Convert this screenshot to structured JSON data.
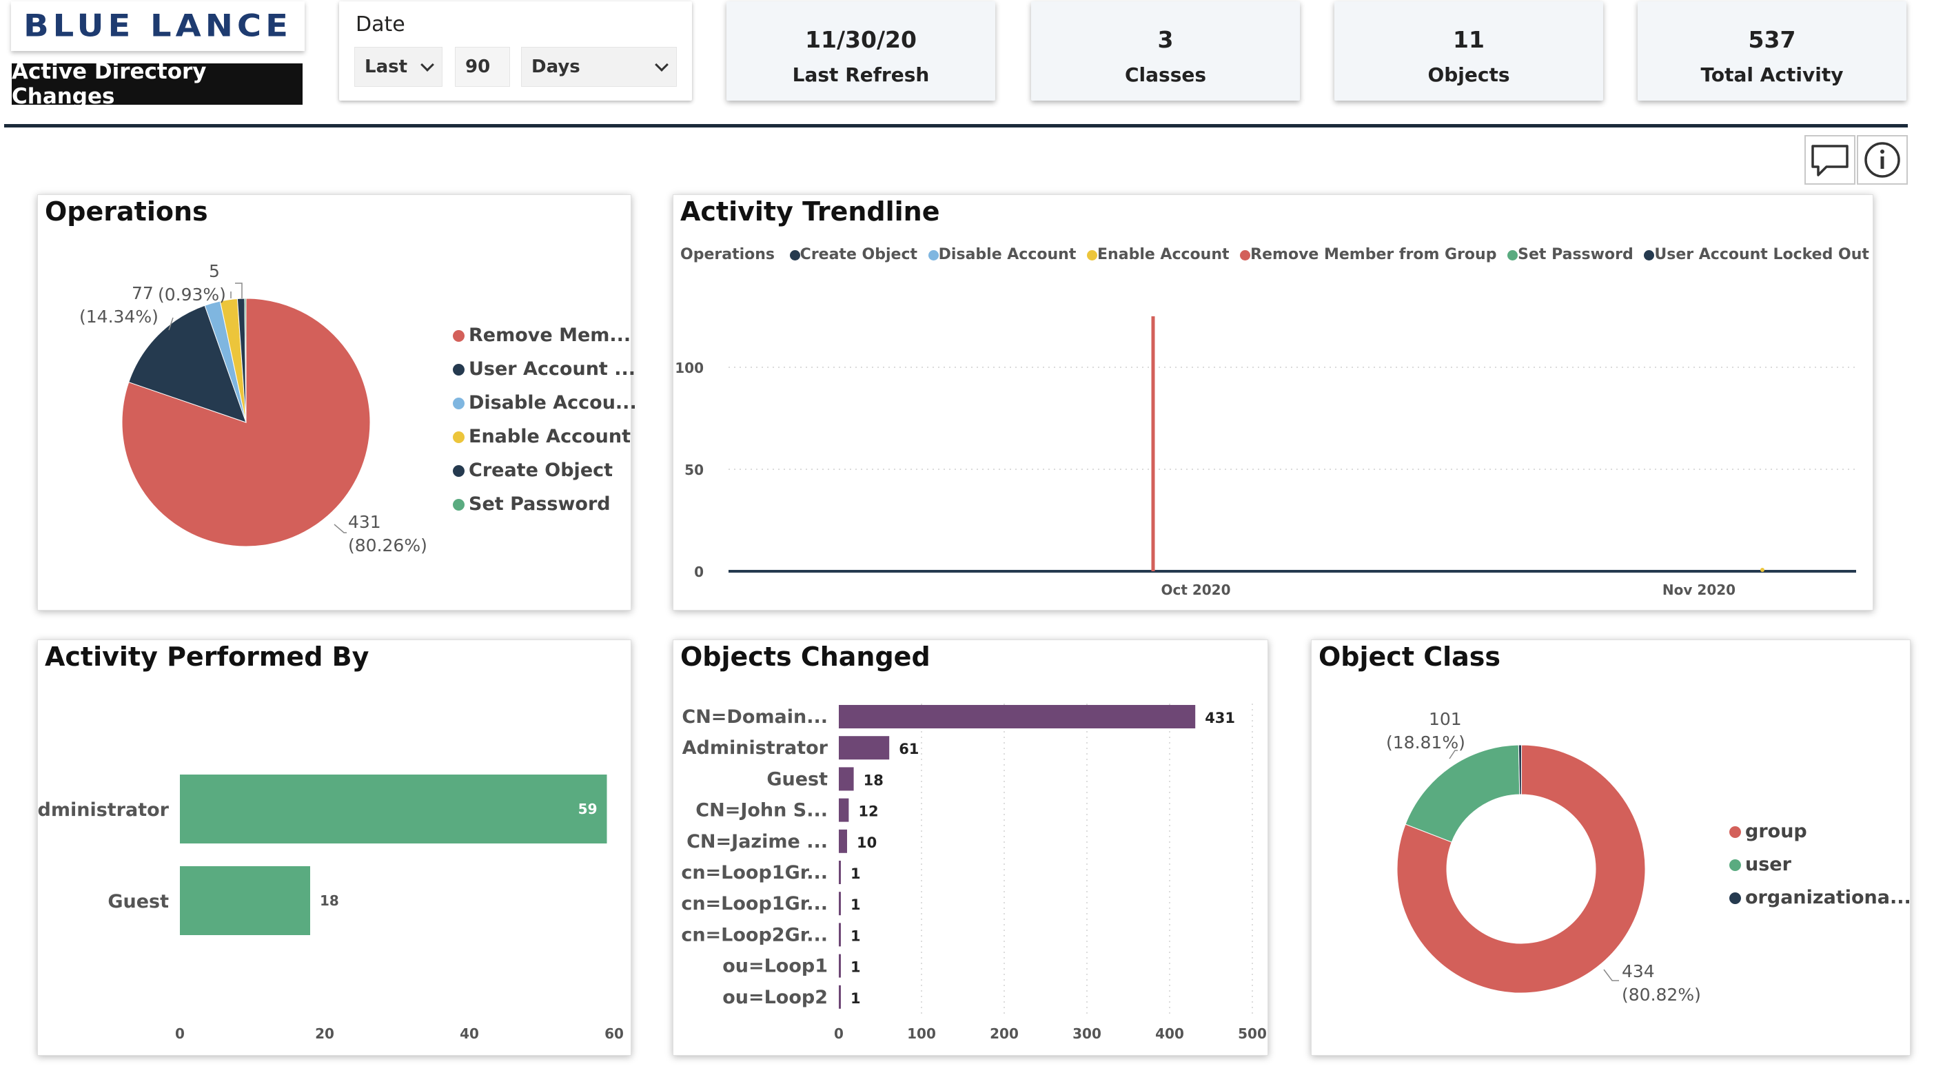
{
  "header": {
    "logo": "BLUE LANCE",
    "report_title": "Active Directory Changes",
    "date_filter": {
      "title": "Date",
      "mode": "Last",
      "amount": "90",
      "unit": "Days"
    },
    "kpis": [
      {
        "value": "11/30/20",
        "label": "Last Refresh"
      },
      {
        "value": "3",
        "label": "Classes"
      },
      {
        "value": "11",
        "label": "Objects"
      },
      {
        "value": "537",
        "label": "Total Activity"
      }
    ]
  },
  "toolbar": {
    "comment_icon": "comment-icon",
    "info_icon": "info-icon"
  },
  "colors": {
    "red": "#d3605a",
    "navy": "#253a4f",
    "lightblue": "#7fb6e0",
    "yellow": "#ecc53b",
    "green": "#5aab80",
    "purple": "#6e4775"
  },
  "operations": {
    "title": "Operations",
    "legend": [
      "Remove Mem...",
      "User Account ...",
      "Disable Accou...",
      "Enable Account",
      "Create Object",
      "Set Password"
    ],
    "labels": {
      "big_value": "431",
      "big_pct": "(80.26%)",
      "mid_value": "77",
      "mid_pct": "(14.34%)",
      "small_pct": "(0.93%)",
      "small_value": "5"
    }
  },
  "trend": {
    "title": "Activity Trendline",
    "legend_title": "Operations",
    "legend": [
      "Create Object",
      "Disable Account",
      "Enable Account",
      "Remove Member from Group",
      "Set Password",
      "User Account Locked Out"
    ],
    "y_ticks": [
      "100",
      "50",
      "0"
    ],
    "x_ticks": [
      "Oct 2020",
      "Nov 2020"
    ]
  },
  "performed_by": {
    "title": "Activity Performed By",
    "x_ticks": [
      "0",
      "20",
      "40",
      "60"
    ]
  },
  "objects_changed": {
    "title": "Objects Changed",
    "x_ticks": [
      "0",
      "100",
      "200",
      "300",
      "400",
      "500"
    ]
  },
  "object_class": {
    "title": "Object Class",
    "legend": [
      "group",
      "user",
      "organizationa..."
    ],
    "labels": {
      "group_value": "434",
      "group_pct": "(80.82%)",
      "user_value": "101",
      "user_pct": "(18.81%)"
    }
  },
  "chart_data": [
    {
      "type": "pie",
      "title": "Operations",
      "categories": [
        "Remove Member from Group",
        "User Account Locked Out",
        "Disable Account",
        "Enable Account",
        "Create Object",
        "Set Password"
      ],
      "values": [
        431,
        77,
        11,
        12,
        5,
        1
      ]
    },
    {
      "type": "line",
      "title": "Activity Trendline",
      "series": [
        {
          "name": "Remove Member from Group",
          "x": [
            "Oct 2020"
          ],
          "values": [
            125
          ]
        }
      ],
      "ylim": [
        0,
        125
      ]
    },
    {
      "type": "bar",
      "title": "Activity Performed By",
      "categories": [
        "administrator",
        "Guest"
      ],
      "values": [
        59,
        18
      ],
      "xlim": [
        0,
        60
      ]
    },
    {
      "type": "bar",
      "title": "Objects Changed",
      "categories": [
        "CN=Domain...",
        "Administrator",
        "Guest",
        "CN=John S...",
        "CN=Jazime ...",
        "cn=Loop1Gr...",
        "cn=Loop1Gr...",
        "cn=Loop2Gr...",
        "ou=Loop1",
        "ou=Loop2"
      ],
      "values": [
        431,
        61,
        18,
        12,
        10,
        1,
        1,
        1,
        1,
        1
      ],
      "xlim": [
        0,
        500
      ]
    },
    {
      "type": "pie",
      "title": "Object Class",
      "categories": [
        "group",
        "user",
        "organizationa..."
      ],
      "values": [
        434,
        101,
        2
      ]
    }
  ]
}
